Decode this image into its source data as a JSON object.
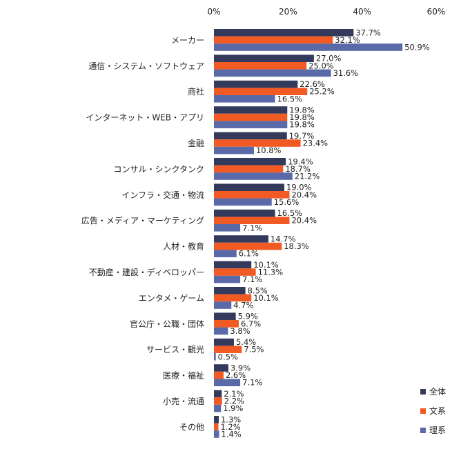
{
  "chart_data": {
    "type": "bar",
    "orientation": "horizontal",
    "xlim": [
      0,
      60
    ],
    "xticks": [
      "0%",
      "20%",
      "40%",
      "60%"
    ],
    "grid": false,
    "legend_position": "bottom-right",
    "categories": [
      "メーカー",
      "通信・システム・ソフトウェア",
      "商社",
      "インターネット・WEB・アプリ",
      "金融",
      "コンサル・シンクタンク",
      "インフラ・交通・物流",
      "広告・メディア・マーケティング",
      "人材・教育",
      "不動産・建設・ディベロッパー",
      "エンタメ・ゲーム",
      "官公庁・公職・団体",
      "サービス・観光",
      "医療・福祉",
      "小売・流通",
      "その他"
    ],
    "series": [
      {
        "name": "全体",
        "color": "#333a5c",
        "values": [
          37.7,
          27.0,
          22.6,
          19.8,
          19.7,
          19.4,
          19.0,
          16.5,
          14.7,
          10.1,
          8.5,
          5.9,
          5.4,
          3.9,
          2.1,
          1.3
        ]
      },
      {
        "name": "文系",
        "color": "#f15a22",
        "values": [
          32.1,
          25.0,
          25.2,
          19.8,
          23.4,
          18.7,
          20.4,
          20.4,
          18.3,
          11.3,
          10.1,
          6.7,
          7.5,
          2.6,
          2.2,
          1.2
        ]
      },
      {
        "name": "理系",
        "color": "#5a6aa8",
        "values": [
          50.9,
          31.6,
          16.5,
          19.8,
          10.8,
          21.2,
          15.6,
          7.1,
          6.1,
          7.1,
          4.7,
          3.8,
          0.5,
          7.1,
          1.9,
          1.4
        ]
      }
    ],
    "value_labels": [
      [
        "37.7%",
        "27.0%",
        "22.6%",
        "19.8%",
        "19.7%",
        "19.4%",
        "19.0%",
        "16.5%",
        "14.7%",
        "10.1%",
        "8.5%",
        "5.9%",
        "5.4%",
        "3.9%",
        "2.1%",
        "1.3%"
      ],
      [
        "32.1%",
        "25.0%",
        "25.2%",
        "19.8%",
        "23.4%",
        "18.7%",
        "20.4%",
        "20.4%",
        "18.3%",
        "11.3%",
        "10.1%",
        "6.7%",
        "7.5%",
        "2.6%",
        "2.2%",
        "1.2%"
      ],
      [
        "50.9%",
        "31.6%",
        "16.5%",
        "19.8%",
        "10.8%",
        "21.2%",
        "15.6%",
        "7.1%",
        "6.1%",
        "7.1%",
        "4.7%",
        "3.8%",
        "0.5%",
        "7.1%",
        "1.9%",
        "1.4%"
      ]
    ]
  }
}
